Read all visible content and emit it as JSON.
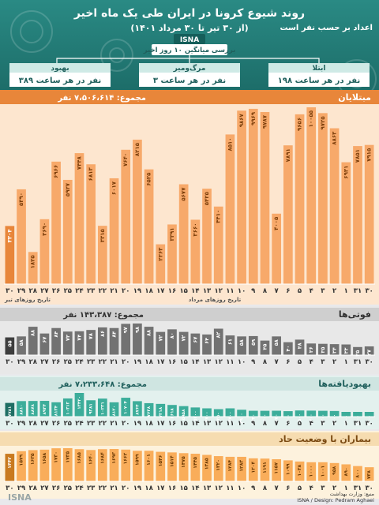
{
  "header": {
    "title": "روند شیوع کرونا در ایران طی یک ماه اخیر",
    "subtitle": "(از ۳۰ تیر تا ۳۰ مرداد ۱۴۰۱)",
    "agency": "ISNA",
    "hourly_note": "اعداد بر حسب نفر است",
    "avg_label": "بررسی میانگین ۱۰ روز اخیر",
    "watermark": "ISNA",
    "stats": [
      {
        "title": "ابتلا",
        "value": "۱۹۸ نفر در هر ساعت"
      },
      {
        "title": "مرگ‌ومیر",
        "value": "۳ نفر در هر ساعت"
      },
      {
        "title": "بهبود",
        "value": "۳۸۹ نفر در هر ساعت"
      }
    ]
  },
  "colors": {
    "header_bg": "#1e7873",
    "infected": "#f7a96a",
    "infected_head": "#e8863a",
    "deaths": "#727272",
    "recovered": "#3cad9a",
    "severe": "#f9ad5a",
    "title_bar": "#d5d5d5"
  },
  "footer": {
    "left": "ISNA / Design: Pedram Aghaei",
    "right": "منبع: وزارت بهداشت"
  },
  "chart_data": [
    {
      "type": "bar",
      "title": "مبتلایان",
      "total_label": "مجموع: ۷،۵۰۶،۶۱۴ نفر",
      "month_labels": [
        "تاریخ روزهای تیر",
        "تاریخ روزهای مرداد"
      ],
      "categories": [
        "۳۰",
        "۳۱",
        "۱",
        "۲",
        "۳",
        "۴",
        "۵",
        "۶",
        "۷",
        "۸",
        "۹",
        "۱۰",
        "۱۱",
        "۱۲",
        "۱۳",
        "۱۴",
        "۱۵",
        "۱۶",
        "۱۷",
        "۱۸",
        "۱۹",
        "۲۰",
        "۲۱",
        "۲۲",
        "۲۳",
        "۲۴",
        "۲۵",
        "۲۶",
        "۲۷",
        "۲۸",
        "۲۹",
        "۳۰"
      ],
      "values": [
        7915,
        7851,
        6931,
        8863,
        9725,
        10055,
        9656,
        7891,
        4005,
        9787,
        9969,
        9867,
        8510,
        4410,
        5425,
        3660,
        5677,
        3391,
        2263,
        6525,
        8215,
        7640,
        6017,
        3315,
        6813,
        7448,
        5927,
        6966,
        3690,
        1825,
        5390,
        3304
      ],
      "value_labels": [
        "۷۹۱۵",
        "۷۸۵۱",
        "۶۹۳۱",
        "۸۸۶۳",
        "۹۷۲۵",
        "۱۰۰۵۵",
        "۹۶۵۶",
        "۷۸۹۱",
        "۴۰۰۵",
        "۹۷۸۷",
        "۹۹۶۹",
        "۹۸۶۷",
        "۸۵۱۰",
        "۴۴۱۰",
        "۵۴۲۵",
        "۳۶۶۰",
        "۵۶۷۷",
        "۳۳۹۱",
        "۲۲۶۳",
        "۶۵۲۵",
        "۸۲۱۵",
        "۷۶۴۰",
        "۶۰۱۷",
        "۳۳۱۵",
        "۶۸۱۳",
        "۷۴۴۸",
        "۵۹۲۷",
        "۶۹۶۶",
        "۳۶۹۰",
        "۱۸۲۵",
        "۵۳۹۰",
        "۳۳۰۴"
      ]
    },
    {
      "type": "bar",
      "title": "فوتی‌ها",
      "total_label": "مجموع: ۱۴۳،۳۸۷ نفر",
      "categories": [
        "۳۰",
        "۳۱",
        "۱",
        "۲",
        "۳",
        "۴",
        "۵",
        "۶",
        "۷",
        "۸",
        "۹",
        "۱۰",
        "۱۱",
        "۱۲",
        "۱۳",
        "۱۴",
        "۱۵",
        "۱۶",
        "۱۷",
        "۱۸",
        "۱۹",
        "۲۰",
        "۲۱",
        "۲۲",
        "۲۳",
        "۲۴",
        "۲۵",
        "۲۶",
        "۲۷",
        "۲۸",
        "۲۹",
        "۳۰"
      ],
      "values": [
        27,
        25,
        33,
        34,
        35,
        36,
        48,
        40,
        58,
        45,
        59,
        58,
        61,
        82,
        64,
        67,
        72,
        80,
        72,
        88,
        98,
        97,
        84,
        86,
        78,
        74,
        73,
        84,
        67,
        88,
        58,
        55
      ],
      "value_labels": [
        "۲۷",
        "۲۵",
        "۳۳",
        "۳۴",
        "۳۵",
        "۳۶",
        "۴۸",
        "۴۰",
        "۵۸",
        "۴۵",
        "۵۹",
        "۵۸",
        "۶۱",
        "۸۲",
        "۶۴",
        "۶۷",
        "۷۲",
        "۸۰",
        "۷۲",
        "۸۸",
        "۹۸",
        "۹۷",
        "۸۴",
        "۸۶",
        "۷۸",
        "۷۴",
        "۷۳",
        "۸۴",
        "۶۷",
        "۸۸",
        "۵۸",
        "۵۵"
      ]
    },
    {
      "type": "bar",
      "title": "بهبودیافته‌ها",
      "total_label": "مجموع: ۷،۲۳۳،۶۴۸ نفر",
      "categories": [
        "۳۰",
        "۳۱",
        "۱",
        "۲",
        "۳",
        "۴",
        "۵",
        "۶",
        "۷",
        "۸",
        "۹",
        "۱۰",
        "۱۱",
        "۱۲",
        "۱۳",
        "۱۴",
        "۱۵",
        "۱۶",
        "۱۷",
        "۱۸",
        "۱۹",
        "۲۰",
        "۲۱",
        "۲۲",
        "۲۳",
        "۲۴",
        "۲۵",
        "۲۶",
        "۲۷",
        "۲۸",
        "۲۹",
        "۳۰"
      ],
      "values": [
        2300,
        2500,
        2600,
        3200,
        3300,
        3400,
        3500,
        3100,
        3350,
        3300,
        3320,
        3900,
        4700,
        4250,
        4700,
        5200,
        5958,
        6618,
        7218,
        7638,
        8764,
        10704,
        8120,
        10231,
        9281,
        13420,
        10312,
        8134,
        8934,
        8878,
        8810,
        7781
      ],
      "value_labels": [
        "۲۳۰۰",
        "۲۵۰۰",
        "۲۶۰۰",
        "۳۲۰۰",
        "۳۳۰۰",
        "۳۴۰۰",
        "۳۵۰۰",
        "۳۱۰۰",
        "۳۳۵۰",
        "۳۳۰۰",
        "۳۳۲۰",
        "۳۹۰۰",
        "۴۷۰۰",
        "۴۲۵۰",
        "۴۷۰۰",
        "۵۲۰۰",
        "۵۹۵۸",
        "۶۶۱۸",
        "۷۲۱۸",
        "۷۶۳۸",
        "۸۷۶۴",
        "۱۰۷۰۴",
        "۸۱۲۰",
        "۱۰۲۳۱",
        "۹۲۸۱",
        "۱۳۴۲۰",
        "۱۰۳۱۲",
        "۸۱۳۴",
        "۸۹۳۴",
        "۸۸۷۸",
        "۸۸۱۰",
        "۷۷۸۱"
      ]
    },
    {
      "type": "bar",
      "title": "بیماران با وضعیت حاد",
      "categories": [
        "۳۰",
        "۳۱",
        "۱",
        "۲",
        "۳",
        "۴",
        "۵",
        "۶",
        "۷",
        "۸",
        "۹",
        "۱۰",
        "۱۱",
        "۱۲",
        "۱۳",
        "۱۴",
        "۱۵",
        "۱۶",
        "۱۷",
        "۱۸",
        "۱۹",
        "۲۰",
        "۲۱",
        "۲۲",
        "۲۳",
        "۲۴",
        "۲۵",
        "۲۶",
        "۲۷",
        "۲۸",
        "۲۹",
        "۳۰"
      ],
      "values": [
        738,
        800,
        890,
        958,
        1001,
        1000,
        1038,
        1099,
        1157,
        1191,
        1204,
        1283,
        1284,
        1320,
        1385,
        1445,
        1475,
        1514,
        1546,
        1601,
        1599,
        1662,
        1693,
        1684,
        1640,
        1685,
        1735,
        1730,
        1658,
        1635,
        1579,
        1442
      ],
      "value_labels": [
        "۷۳۸",
        "۸۰۰",
        "۸۹۰",
        "۹۵۸",
        "۱۰۰۱",
        "۱۰۰۰",
        "۱۰۳۸",
        "۱۰۹۹",
        "۱۱۵۷",
        "۱۱۹۱",
        "۱۲۰۴",
        "۱۲۸۳",
        "۱۲۸۴",
        "۱۳۲۰",
        "۱۳۸۵",
        "۱۴۴۵",
        "۱۴۷۵",
        "۱۵۱۴",
        "۱۵۴۶",
        "۱۶۰۱",
        "۱۵۹۹",
        "۱۶۶۲",
        "۱۶۹۳",
        "۱۶۸۴",
        "۱۶۴۰",
        "۱۶۸۵",
        "۱۷۳۵",
        "۱۷۳۰",
        "۱۶۵۸",
        "۱۶۳۵",
        "۱۵۷۹",
        "۱۴۴۲"
      ]
    }
  ]
}
